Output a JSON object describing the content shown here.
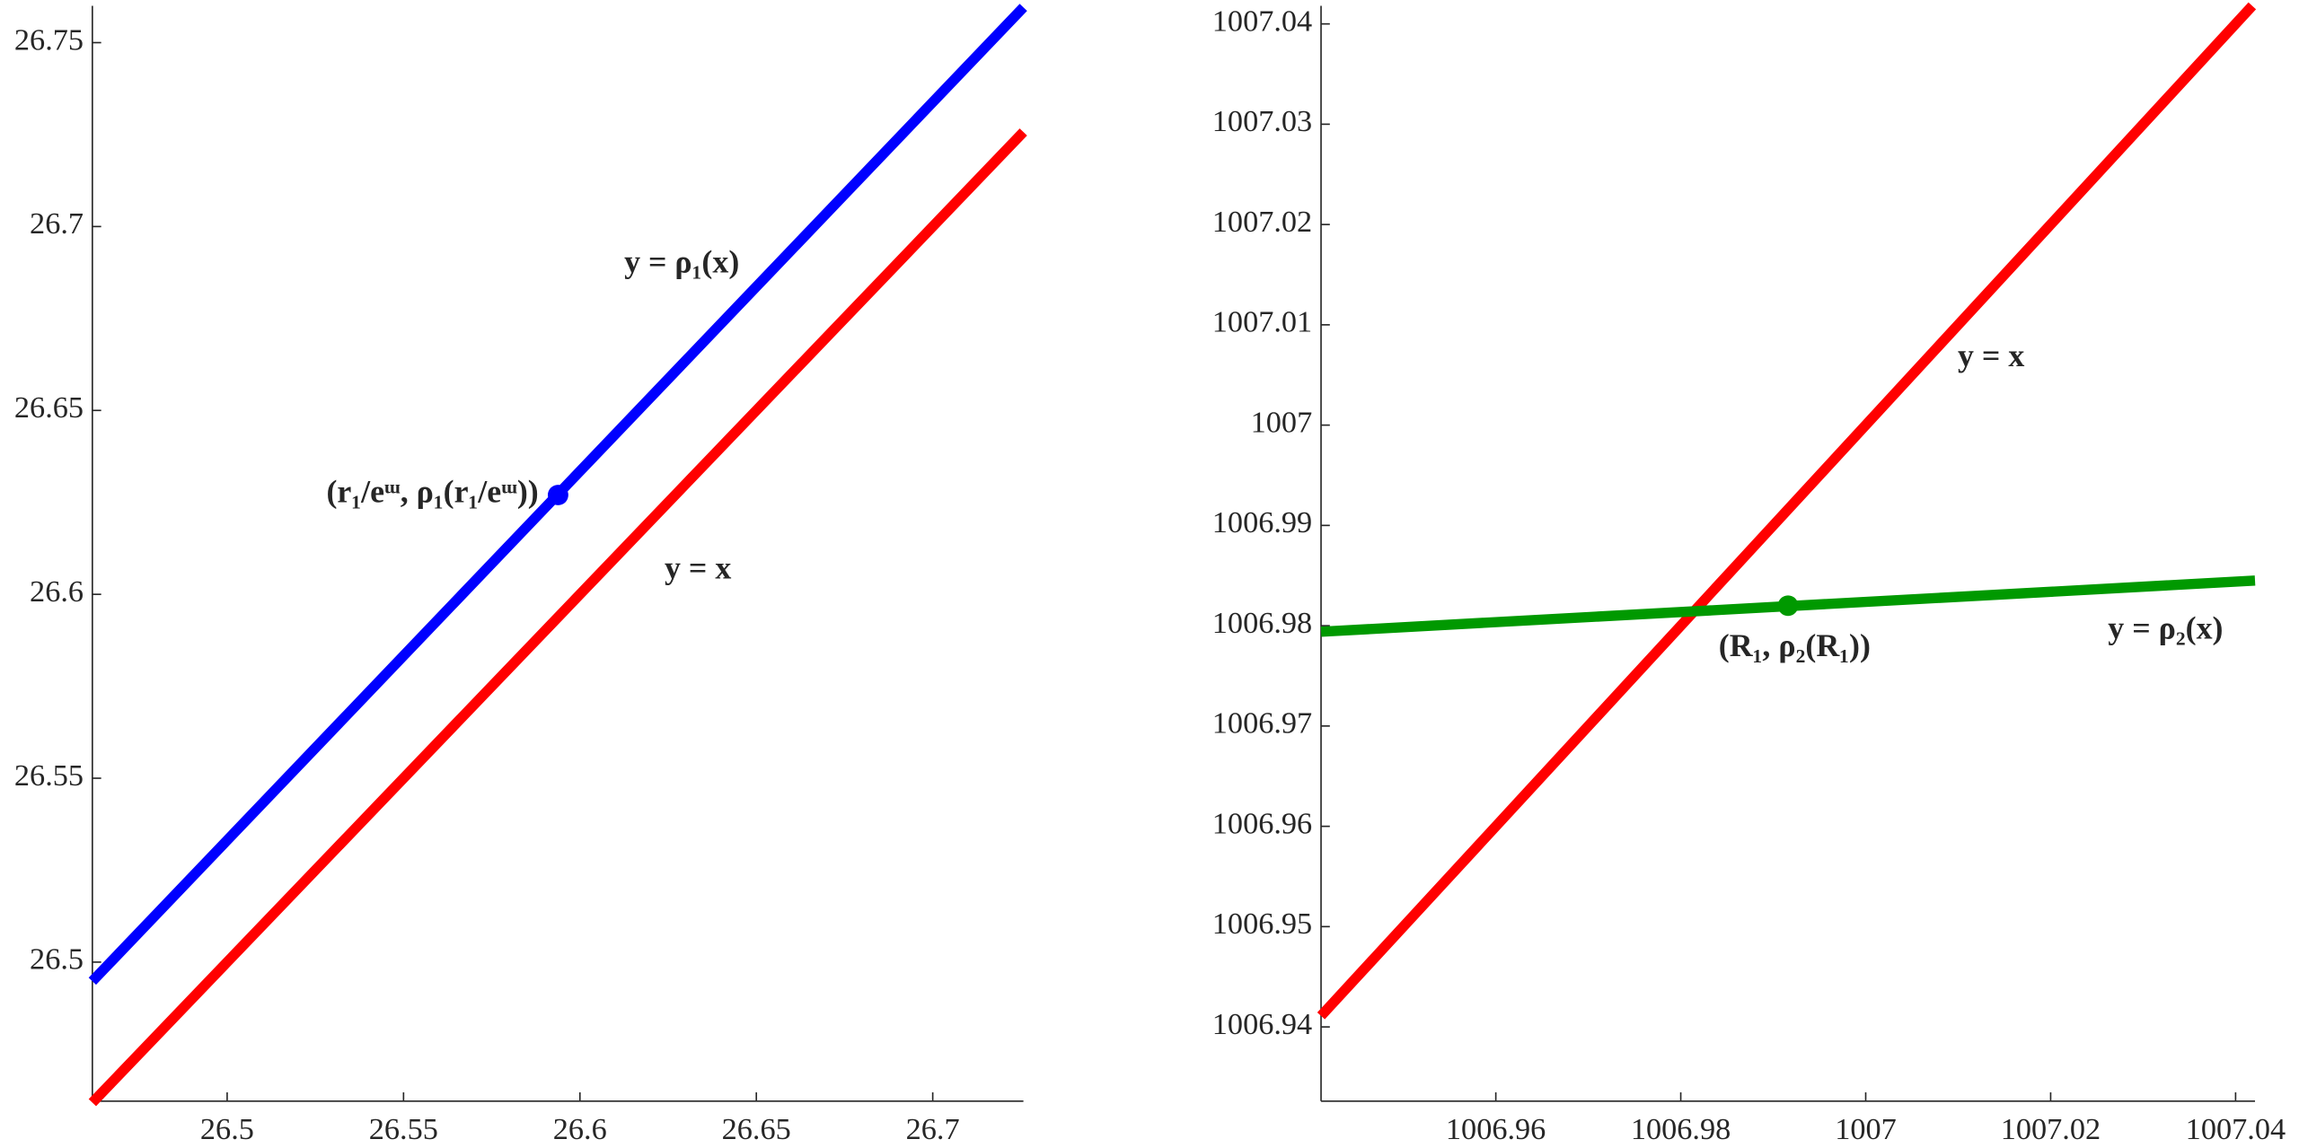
{
  "chart_data": [
    {
      "type": "line",
      "xlim": [
        26.4618,
        26.7257
      ],
      "ylim": [
        26.4622,
        26.76
      ],
      "xticks": [
        26.5,
        26.55,
        26.6,
        26.65,
        26.7
      ],
      "yticks": [
        26.5,
        26.55,
        26.6,
        26.65,
        26.7,
        26.75
      ],
      "series": [
        {
          "name": "y = ρ₁(x)",
          "color": "#0000ff",
          "x": [
            26.4618,
            26.7257
          ],
          "values": [
            26.4948,
            26.7596
          ]
        },
        {
          "name": "y = x",
          "color": "#ff0000",
          "x": [
            26.4618,
            26.7257
          ],
          "values": [
            26.4618,
            26.7257
          ]
        }
      ],
      "points": [
        {
          "label": "(r₁/eᵚ, ρ₁(r₁/eᵚ))",
          "color": "#0000ff",
          "x": 26.5938,
          "y": 26.627
        }
      ]
    },
    {
      "type": "line",
      "xlim": [
        1006.9411,
        1007.0421
      ],
      "ylim": [
        1006.9326,
        1007.0418
      ],
      "xticks": [
        1006.96,
        1006.98,
        1007,
        1007.02,
        1007.04
      ],
      "yticks": [
        1006.94,
        1006.95,
        1006.96,
        1006.97,
        1006.98,
        1006.99,
        1007,
        1007.01,
        1007.02,
        1007.03,
        1007.04
      ],
      "series": [
        {
          "name": "y = x",
          "color": "#ff0000",
          "x": [
            1006.9411,
            1007.0418
          ],
          "values": [
            1006.9411,
            1007.0418
          ]
        },
        {
          "name": "y = ρ₂(x)",
          "color": "#009900",
          "x": [
            1006.9411,
            1007.0421
          ],
          "values": [
            1006.9794,
            1006.9845
          ]
        }
      ],
      "points": [
        {
          "label": "(R₁, ρ₂(R₁))",
          "color": "#009900",
          "x": 1006.9916,
          "y": 1006.982
        }
      ]
    }
  ]
}
